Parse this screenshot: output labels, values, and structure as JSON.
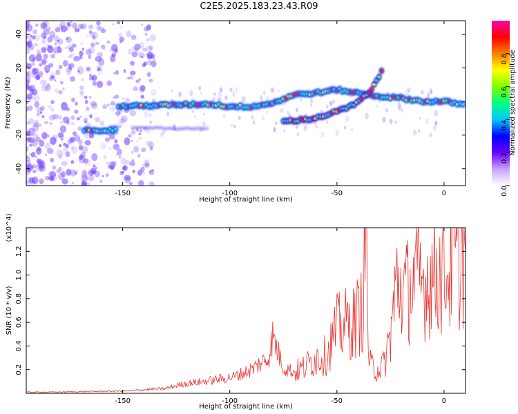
{
  "page": {
    "title": "C2E5.2025.183.23.43.R09"
  },
  "colors": {
    "snr_line": "#e8332f",
    "ridge_main": "#1b57ff",
    "ridge_side": "#3a2bd6",
    "scatter": "#7d4cff",
    "background": "#ffffff"
  },
  "chart_data": [
    {
      "type": "heatmap",
      "xlabel": "Height of straight line (km)",
      "ylabel": "Frequency (Hz)",
      "xlim": [
        -195,
        10
      ],
      "ylim": [
        -50,
        48
      ],
      "x_ticks": [
        -150,
        -100,
        -50,
        0
      ],
      "y_ticks": [
        -40,
        -20,
        0,
        20,
        40
      ],
      "colorbar": {
        "label": "Normalized spectral amplitude",
        "range": [
          0.0,
          1.0
        ],
        "ticks": [
          "0.0",
          "0.2",
          "0.4",
          "0.6",
          "0.8"
        ],
        "colormap": [
          "#ffffff",
          "#c8a2ff",
          "#6a00ff",
          "#0000ff",
          "#00c8ff",
          "#00ff80",
          "#7fff00",
          "#ffff00",
          "#ff8000",
          "#ff0000",
          "#ff00aa"
        ]
      },
      "ridges": [
        {
          "x": [
            -152,
            -140,
            -125,
            -110,
            -100,
            -90,
            -80,
            -70,
            -60,
            -50,
            -40,
            -30,
            -20,
            -10,
            0,
            10
          ],
          "y": [
            -3,
            -2.5,
            -2,
            -1.5,
            -3,
            -3,
            -1,
            4,
            5,
            7,
            5,
            3,
            2,
            0,
            0,
            -2
          ]
        },
        {
          "x": [
            -75,
            -60,
            -50,
            -42,
            -35,
            -28
          ],
          "y": [
            -12,
            -10,
            -6,
            -2,
            5,
            20
          ]
        },
        {
          "x": [
            -168,
            -152
          ],
          "y": [
            -17,
            -17
          ]
        },
        {
          "x": [
            -145,
            -110
          ],
          "y": [
            -16,
            -16
          ]
        }
      ]
    },
    {
      "type": "line",
      "xlabel": "Height of straight line (km)",
      "ylabel": "SNR (10 * v/v)",
      "y_scale_label": "(x10^4)",
      "xlim": [
        -195,
        10
      ],
      "ylim": [
        0,
        1.4
      ],
      "x_ticks": [
        -150,
        -100,
        -50,
        0
      ],
      "y_ticks": [
        0.2,
        0.4,
        0.6,
        0.8,
        1.0,
        1.2
      ],
      "series": [
        {
          "x": [
            -195,
            -185,
            -175,
            -165,
            -155,
            -148,
            -140,
            -130,
            -122,
            -112,
            -105,
            -98,
            -90,
            -82,
            -80,
            -75,
            -70,
            -65,
            -60,
            -55,
            -50,
            -46,
            -42,
            -38,
            -36.5,
            -35,
            -32,
            -28,
            -25,
            -22,
            -18,
            -14,
            -10,
            -6,
            -2,
            2,
            6,
            10
          ],
          "y": [
            0.01,
            0.01,
            0.012,
            0.015,
            0.018,
            0.02,
            0.03,
            0.04,
            0.08,
            0.1,
            0.12,
            0.14,
            0.2,
            0.3,
            0.48,
            0.22,
            0.18,
            0.22,
            0.3,
            0.32,
            0.55,
            0.58,
            0.6,
            0.72,
            1.36,
            0.25,
            0.2,
            0.24,
            0.5,
            0.95,
            0.85,
            0.95,
            0.92,
            1.0,
            1.02,
            1.05,
            1.1,
            1.2
          ]
        }
      ]
    }
  ]
}
